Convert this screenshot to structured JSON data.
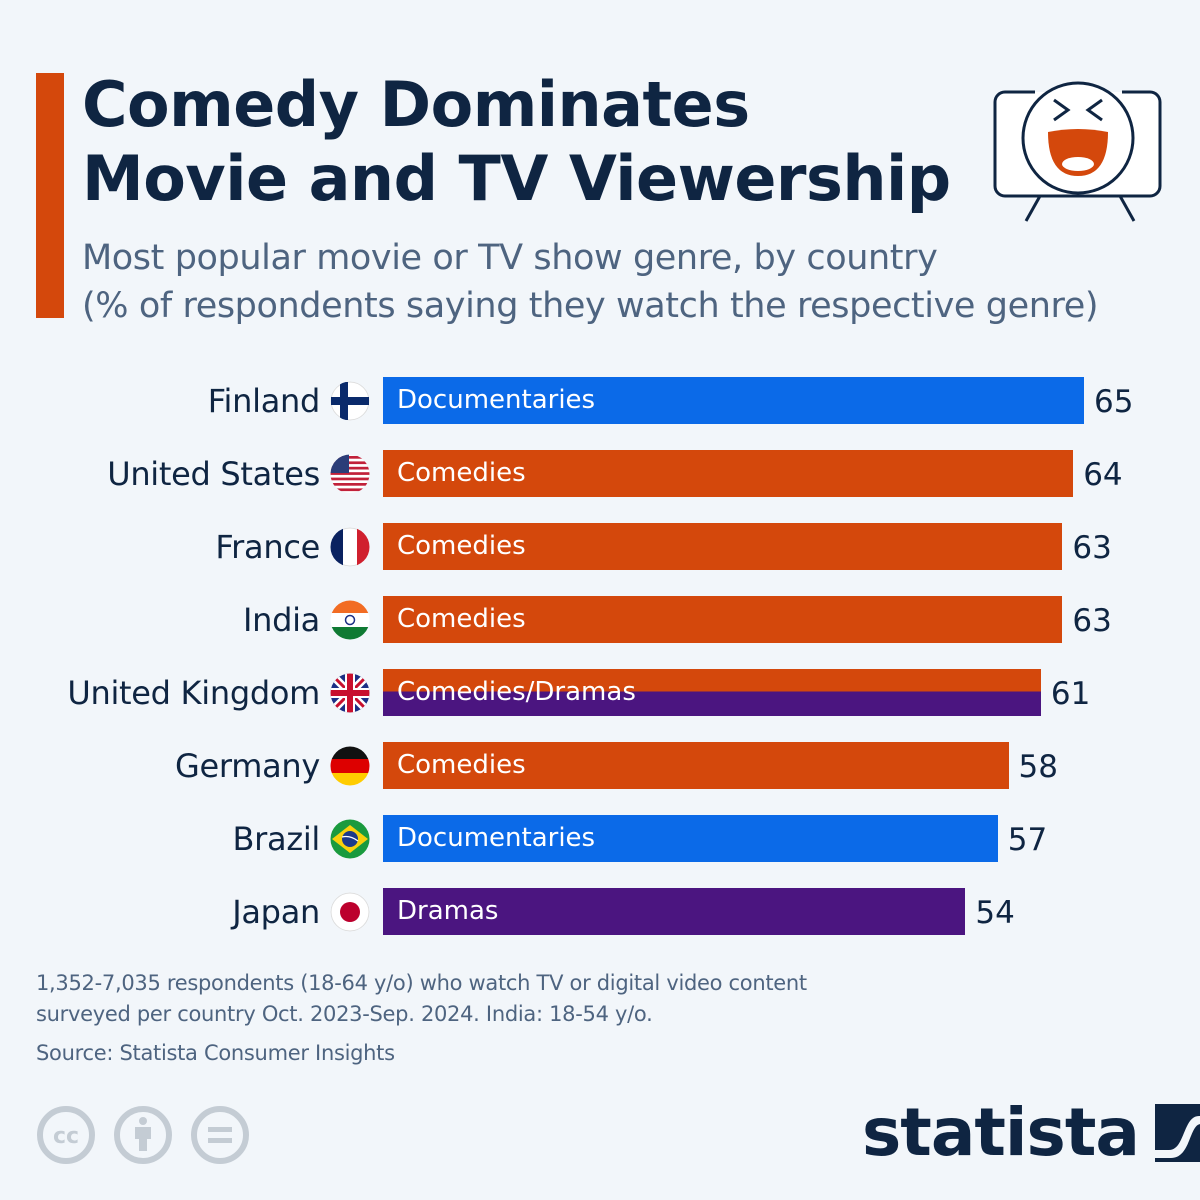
{
  "header": {
    "title_line1": "Comedy Dominates",
    "title_line2": "Movie and TV Viewership",
    "subtitle_line1": "Most popular movie or TV show genre, by country",
    "subtitle_line2": "(% of respondents saying they watch the respective genre)",
    "icon": "laughing-tv-icon"
  },
  "colors": {
    "accent": "#d4480c",
    "Comedies": "#d4480c",
    "Documentaries": "#0b6ae8",
    "Dramas": "#4b1580",
    "text_dark": "#0f2542",
    "text_muted": "#4e6480"
  },
  "chart_data": {
    "type": "bar",
    "orientation": "horizontal",
    "title": "Comedy Dominates Movie and TV Viewership",
    "subtitle": "Most popular movie or TV show genre, by country (% of respondents saying they watch the respective genre)",
    "xlabel": "",
    "ylabel": "",
    "xlim": [
      0,
      65
    ],
    "grid": false,
    "categories": [
      "Finland",
      "United States",
      "France",
      "India",
      "United Kingdom",
      "Germany",
      "Brazil",
      "Japan"
    ],
    "values": [
      65,
      64,
      63,
      63,
      61,
      58,
      57,
      54
    ],
    "genres": [
      "Documentaries",
      "Comedies",
      "Comedies",
      "Comedies",
      "Comedies/Dramas",
      "Comedies",
      "Documentaries",
      "Dramas"
    ],
    "flags": [
      "finland-flag-icon",
      "usa-flag-icon",
      "france-flag-icon",
      "india-flag-icon",
      "uk-flag-icon",
      "germany-flag-icon",
      "brazil-flag-icon",
      "japan-flag-icon"
    ]
  },
  "footer": {
    "note_line1": "1,352-7,035 respondents (18-64 y/o) who watch TV or digital video content",
    "note_line2": "surveyed per country Oct. 2023-Sep. 2024. India: 18-54 y/o.",
    "source": "Source: Statista Consumer Insights",
    "license_icons": [
      "cc-icon",
      "attribution-icon",
      "no-derivatives-icon"
    ],
    "logo_text": "statista"
  }
}
